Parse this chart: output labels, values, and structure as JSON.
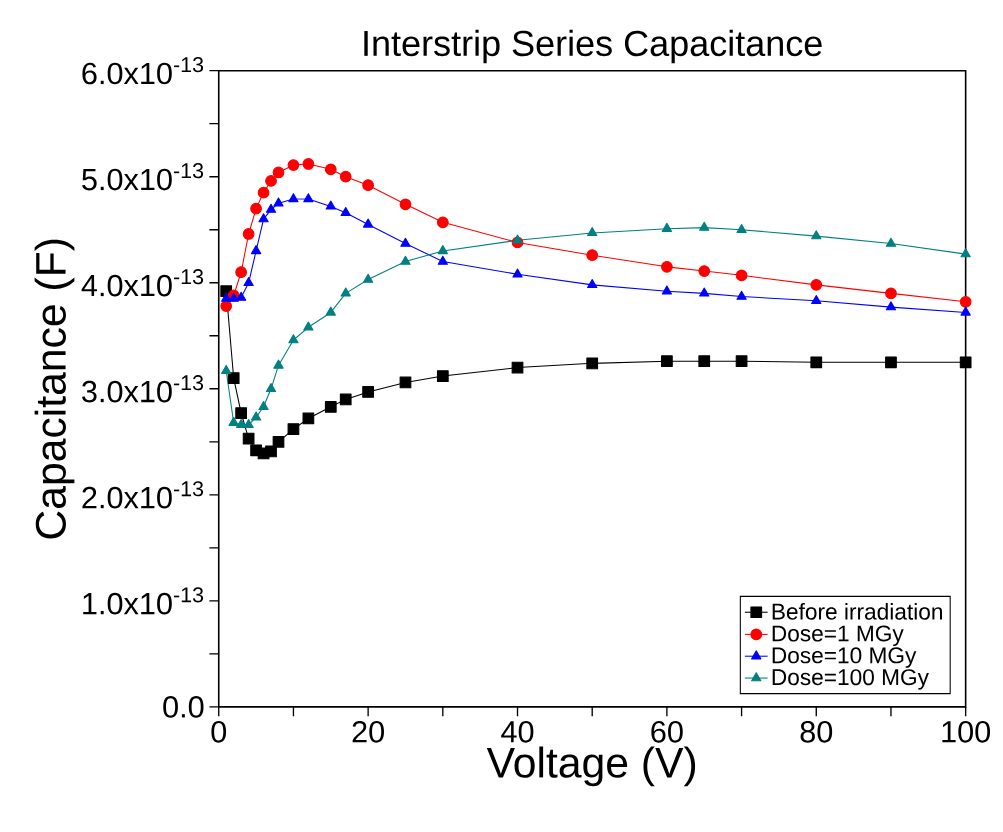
{
  "chart_data": {
    "type": "line",
    "title": "Interstrip Series Capacitance",
    "xlabel": "Voltage (V)",
    "ylabel": "Capacitance (F)",
    "x": [
      1,
      2,
      3,
      4,
      5,
      6,
      7,
      8,
      10,
      12,
      15,
      17,
      20,
      25,
      30,
      40,
      50,
      60,
      65,
      70,
      80,
      90,
      100
    ],
    "series": [
      {
        "name": "Before irradiation",
        "color": "#000000",
        "marker": "square",
        "values": [
          3.92e-13,
          3.1e-13,
          2.77e-13,
          2.53e-13,
          2.42e-13,
          2.39e-13,
          2.41e-13,
          2.5e-13,
          2.62e-13,
          2.72e-13,
          2.83e-13,
          2.9e-13,
          2.97e-13,
          3.06e-13,
          3.12e-13,
          3.2e-13,
          3.24e-13,
          3.26e-13,
          3.26e-13,
          3.26e-13,
          3.25e-13,
          3.25e-13,
          3.25e-13
        ]
      },
      {
        "name": "Dose=1 MGy",
        "color": "#ff0000",
        "marker": "circle",
        "values": [
          3.78e-13,
          3.88e-13,
          4.1e-13,
          4.46e-13,
          4.7e-13,
          4.85e-13,
          4.96e-13,
          5.04e-13,
          5.11e-13,
          5.12e-13,
          5.07e-13,
          5e-13,
          4.92e-13,
          4.74e-13,
          4.57e-13,
          4.38e-13,
          4.26e-13,
          4.15e-13,
          4.11e-13,
          4.07e-13,
          3.98e-13,
          3.9e-13,
          3.82e-13
        ]
      },
      {
        "name": "Dose=10 MGy",
        "color": "#0000ff",
        "marker": "triangle",
        "values": [
          3.85e-13,
          3.85e-13,
          3.86e-13,
          4e-13,
          4.3e-13,
          4.6e-13,
          4.69e-13,
          4.75e-13,
          4.79e-13,
          4.79e-13,
          4.72e-13,
          4.66e-13,
          4.55e-13,
          4.37e-13,
          4.2e-13,
          4.08e-13,
          3.98e-13,
          3.92e-13,
          3.9e-13,
          3.87e-13,
          3.83e-13,
          3.77e-13,
          3.72e-13
        ]
      },
      {
        "name": "Dose=100 MGy",
        "color": "#008080",
        "marker": "triangle",
        "values": [
          3.17e-13,
          2.68e-13,
          2.66e-13,
          2.66e-13,
          2.73e-13,
          2.83e-13,
          3e-13,
          3.22e-13,
          3.46e-13,
          3.58e-13,
          3.72e-13,
          3.9e-13,
          4.03e-13,
          4.2e-13,
          4.3e-13,
          4.4e-13,
          4.47e-13,
          4.51e-13,
          4.52e-13,
          4.5e-13,
          4.44e-13,
          4.37e-13,
          4.27e-13
        ]
      }
    ],
    "xlim": [
      0,
      100
    ],
    "ylim": [
      0,
      6e-13
    ],
    "xticks": [
      0,
      {
        "value": 10,
        "label": null
      },
      20,
      {
        "value": 30,
        "label": null
      },
      40,
      {
        "value": 50,
        "label": null
      },
      60,
      {
        "value": 70,
        "label": null
      },
      80,
      {
        "value": 90,
        "label": null
      },
      100
    ],
    "yticks": [
      {
        "value": 0,
        "label": "0.0"
      },
      {
        "value": 5e-14,
        "label": null
      },
      {
        "value": 1e-13,
        "label": "1.0x10$^{-13}$"
      },
      {
        "value": 1.5e-13,
        "label": null
      },
      {
        "value": 2e-13,
        "label": "2.0x10$^{-13}$"
      },
      {
        "value": 2.5e-13,
        "label": null
      },
      {
        "value": 3e-13,
        "label": "3.0x10$^{-13}$"
      },
      {
        "value": 3.5e-13,
        "label": null
      },
      {
        "value": 4e-13,
        "label": "4.0x10$^{-13}$"
      },
      {
        "value": 4.5e-13,
        "label": null
      },
      {
        "value": 5e-13,
        "label": "5.0x10$^{-13}$"
      },
      {
        "value": 5.5e-13,
        "label": null
      },
      {
        "value": 6e-13,
        "label": "6.0x10$^{-13}$"
      }
    ],
    "grid": false,
    "legend": "bottom right",
    "line_style": "solid"
  }
}
